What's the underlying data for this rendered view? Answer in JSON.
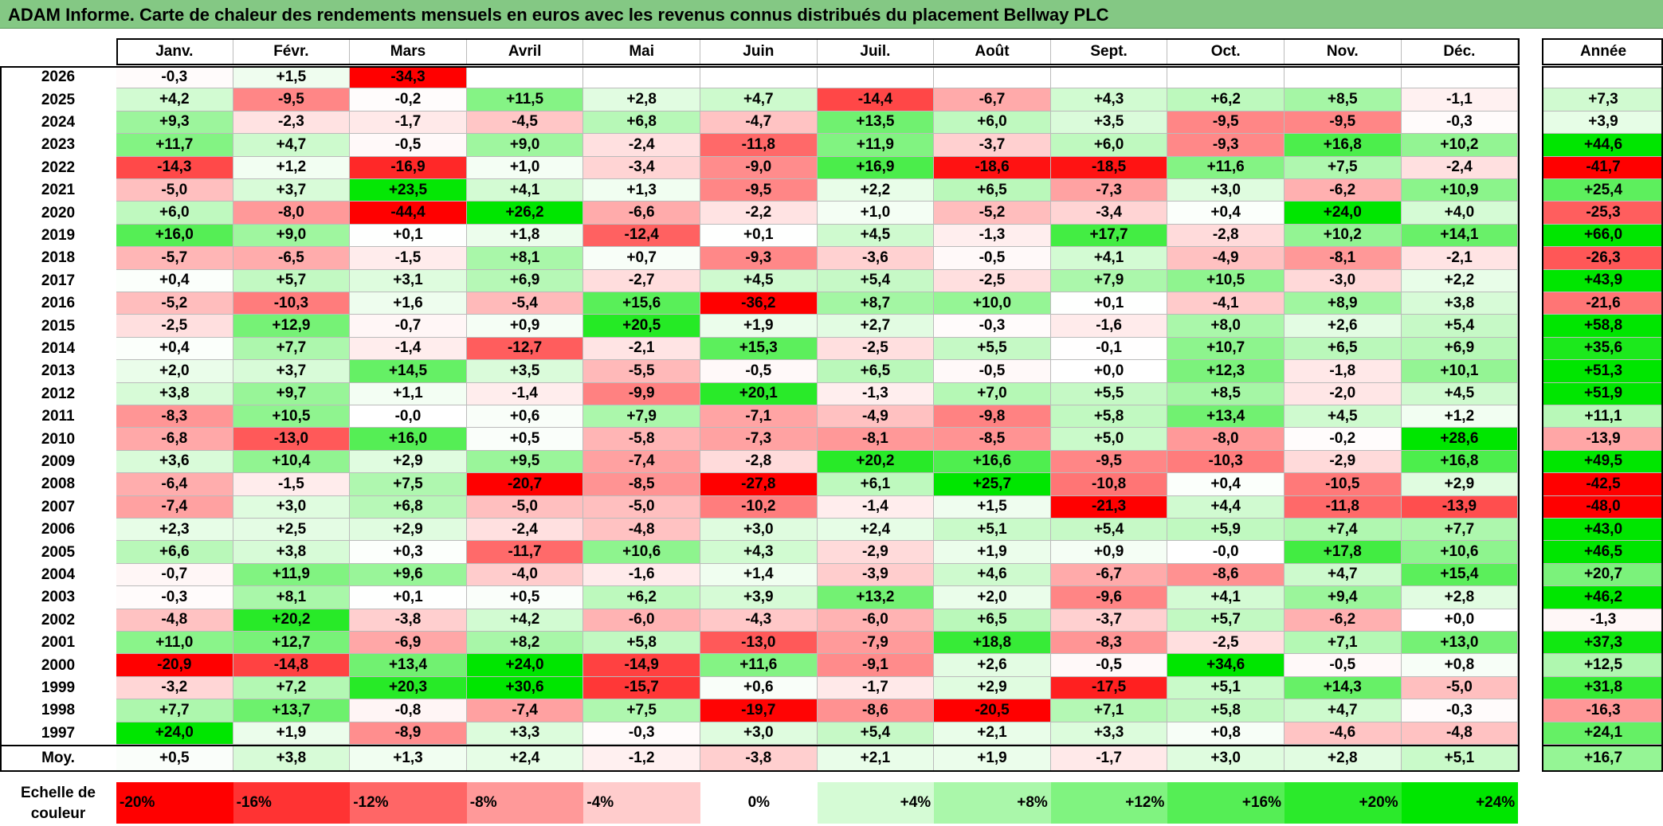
{
  "title": "ADAM Informe. Carte de chaleur des rendements mensuels en euros avec les revenus connus distribués du placement Bellway PLC",
  "chart_data": {
    "type": "heatmap",
    "months": [
      "Janv.",
      "Févr.",
      "Mars",
      "Avril",
      "Mai",
      "Juin",
      "Juil.",
      "Août",
      "Sept.",
      "Oct.",
      "Nov.",
      "Déc."
    ],
    "annual_header": "Année",
    "rows": [
      {
        "year": "2026",
        "values": [
          "-0,3",
          "+1,5",
          "-34,3",
          "",
          "",
          "",
          "",
          "",
          "",
          "",
          "",
          ""
        ],
        "annual": ""
      },
      {
        "year": "2025",
        "values": [
          "+4,2",
          "-9,5",
          "-0,2",
          "+11,5",
          "+2,8",
          "+4,7",
          "-14,4",
          "-6,7",
          "+4,3",
          "+6,2",
          "+8,5",
          "-1,1"
        ],
        "annual": "+7,3"
      },
      {
        "year": "2024",
        "values": [
          "+9,3",
          "-2,3",
          "-1,7",
          "-4,5",
          "+6,8",
          "-4,7",
          "+13,5",
          "+6,0",
          "+3,5",
          "-9,5",
          "-9,5",
          "-0,3"
        ],
        "annual": "+3,9"
      },
      {
        "year": "2023",
        "values": [
          "+11,7",
          "+4,7",
          "-0,5",
          "+9,0",
          "-2,4",
          "-11,8",
          "+11,9",
          "-3,7",
          "+6,0",
          "-9,3",
          "+16,8",
          "+10,2"
        ],
        "annual": "+44,6"
      },
      {
        "year": "2022",
        "values": [
          "-14,3",
          "+1,2",
          "-16,9",
          "+1,0",
          "-3,4",
          "-9,0",
          "+16,9",
          "-18,6",
          "-18,5",
          "+11,6",
          "+7,5",
          "-2,4"
        ],
        "annual": "-41,7"
      },
      {
        "year": "2021",
        "values": [
          "-5,0",
          "+3,7",
          "+23,5",
          "+4,1",
          "+1,3",
          "-9,5",
          "+2,2",
          "+6,5",
          "-7,3",
          "+3,0",
          "-6,2",
          "+10,9"
        ],
        "annual": "+25,4"
      },
      {
        "year": "2020",
        "values": [
          "+6,0",
          "-8,0",
          "-44,4",
          "+26,2",
          "-6,6",
          "-2,2",
          "+1,0",
          "-5,2",
          "-3,4",
          "+0,4",
          "+24,0",
          "+4,0"
        ],
        "annual": "-25,3"
      },
      {
        "year": "2019",
        "values": [
          "+16,0",
          "+9,0",
          "+0,1",
          "+1,8",
          "-12,4",
          "+0,1",
          "+4,5",
          "-1,3",
          "+17,7",
          "-2,8",
          "+10,2",
          "+14,1"
        ],
        "annual": "+66,0"
      },
      {
        "year": "2018",
        "values": [
          "-5,7",
          "-6,5",
          "-1,5",
          "+8,1",
          "+0,7",
          "-9,3",
          "-3,6",
          "-0,5",
          "+4,1",
          "-4,9",
          "-8,1",
          "-2,1"
        ],
        "annual": "-26,3"
      },
      {
        "year": "2017",
        "values": [
          "+0,4",
          "+5,7",
          "+3,1",
          "+6,9",
          "-2,7",
          "+4,5",
          "+5,4",
          "-2,5",
          "+7,9",
          "+10,5",
          "-3,0",
          "+2,2"
        ],
        "annual": "+43,9"
      },
      {
        "year": "2016",
        "values": [
          "-5,2",
          "-10,3",
          "+1,6",
          "-5,4",
          "+15,6",
          "-36,2",
          "+8,7",
          "+10,0",
          "+0,1",
          "-4,1",
          "+8,9",
          "+3,8"
        ],
        "annual": "-21,6"
      },
      {
        "year": "2015",
        "values": [
          "-2,5",
          "+12,9",
          "-0,7",
          "+0,9",
          "+20,5",
          "+1,9",
          "+2,7",
          "-0,3",
          "-1,6",
          "+8,0",
          "+2,6",
          "+5,4"
        ],
        "annual": "+58,8"
      },
      {
        "year": "2014",
        "values": [
          "+0,4",
          "+7,7",
          "-1,4",
          "-12,7",
          "-2,1",
          "+15,3",
          "-2,5",
          "+5,5",
          "-0,1",
          "+10,7",
          "+6,5",
          "+6,9"
        ],
        "annual": "+35,6"
      },
      {
        "year": "2013",
        "values": [
          "+2,0",
          "+3,7",
          "+14,5",
          "+3,5",
          "-5,5",
          "-0,5",
          "+6,5",
          "-0,5",
          "+0,0",
          "+12,3",
          "-1,8",
          "+10,1"
        ],
        "annual": "+51,3"
      },
      {
        "year": "2012",
        "values": [
          "+3,8",
          "+9,7",
          "+1,1",
          "-1,4",
          "-9,9",
          "+20,1",
          "-1,3",
          "+7,0",
          "+5,5",
          "+8,5",
          "-2,0",
          "+4,5"
        ],
        "annual": "+51,9"
      },
      {
        "year": "2011",
        "values": [
          "-8,3",
          "+10,5",
          "-0,0",
          "+0,6",
          "+7,9",
          "-7,1",
          "-4,9",
          "-9,8",
          "+5,8",
          "+13,4",
          "+4,5",
          "+1,2"
        ],
        "annual": "+11,1"
      },
      {
        "year": "2010",
        "values": [
          "-6,8",
          "-13,0",
          "+16,0",
          "+0,5",
          "-5,8",
          "-7,3",
          "-8,1",
          "-8,5",
          "+5,0",
          "-8,0",
          "-0,2",
          "+28,6"
        ],
        "annual": "-13,9"
      },
      {
        "year": "2009",
        "values": [
          "+3,6",
          "+10,4",
          "+2,9",
          "+9,5",
          "-7,4",
          "-2,8",
          "+20,2",
          "+16,6",
          "-9,5",
          "-10,3",
          "-2,9",
          "+16,8"
        ],
        "annual": "+49,5"
      },
      {
        "year": "2008",
        "values": [
          "-6,4",
          "-1,5",
          "+7,5",
          "-20,7",
          "-8,5",
          "-27,8",
          "+6,1",
          "+25,7",
          "-10,8",
          "+0,4",
          "-10,5",
          "+2,9"
        ],
        "annual": "-42,5"
      },
      {
        "year": "2007",
        "values": [
          "-7,4",
          "+3,0",
          "+6,8",
          "-5,0",
          "-5,0",
          "-10,2",
          "-1,4",
          "+1,5",
          "-21,3",
          "+4,4",
          "-11,8",
          "-13,9"
        ],
        "annual": "-48,0"
      },
      {
        "year": "2006",
        "values": [
          "+2,3",
          "+2,5",
          "+2,9",
          "-2,4",
          "-4,8",
          "+3,0",
          "+2,4",
          "+5,1",
          "+5,4",
          "+5,9",
          "+7,4",
          "+7,7"
        ],
        "annual": "+43,0"
      },
      {
        "year": "2005",
        "values": [
          "+6,6",
          "+3,8",
          "+0,3",
          "-11,7",
          "+10,6",
          "+4,3",
          "-2,9",
          "+1,9",
          "+0,9",
          "-0,0",
          "+17,8",
          "+10,6"
        ],
        "annual": "+46,5"
      },
      {
        "year": "2004",
        "values": [
          "-0,7",
          "+11,9",
          "+9,6",
          "-4,0",
          "-1,6",
          "+1,4",
          "-3,9",
          "+4,6",
          "-6,7",
          "-8,6",
          "+4,7",
          "+15,4"
        ],
        "annual": "+20,7"
      },
      {
        "year": "2003",
        "values": [
          "-0,3",
          "+8,1",
          "+0,1",
          "+0,5",
          "+6,2",
          "+3,9",
          "+13,2",
          "+2,0",
          "-9,6",
          "+4,1",
          "+9,4",
          "+2,8"
        ],
        "annual": "+46,2"
      },
      {
        "year": "2002",
        "values": [
          "-4,8",
          "+20,2",
          "-3,8",
          "+4,2",
          "-6,0",
          "-4,3",
          "-6,0",
          "+6,5",
          "-3,7",
          "+5,7",
          "-6,2",
          "+0,0"
        ],
        "annual": "-1,3"
      },
      {
        "year": "2001",
        "values": [
          "+11,0",
          "+12,7",
          "-6,9",
          "+8,2",
          "+5,8",
          "-13,0",
          "-7,9",
          "+18,8",
          "-8,3",
          "-2,5",
          "+7,1",
          "+13,0"
        ],
        "annual": "+37,3"
      },
      {
        "year": "2000",
        "values": [
          "-20,9",
          "-14,8",
          "+13,4",
          "+24,0",
          "-14,9",
          "+11,6",
          "-9,1",
          "+2,6",
          "-0,5",
          "+34,6",
          "-0,5",
          "+0,8"
        ],
        "annual": "+12,5"
      },
      {
        "year": "1999",
        "values": [
          "-3,2",
          "+7,2",
          "+20,3",
          "+30,6",
          "-15,7",
          "+0,6",
          "-1,7",
          "+2,9",
          "-17,5",
          "+5,1",
          "+14,3",
          "-5,0"
        ],
        "annual": "+31,8"
      },
      {
        "year": "1998",
        "values": [
          "+7,7",
          "+13,7",
          "-0,8",
          "-7,4",
          "+7,5",
          "-19,7",
          "-8,6",
          "-20,5",
          "+7,1",
          "+5,8",
          "+4,7",
          "-0,3"
        ],
        "annual": "-16,3"
      },
      {
        "year": "1997",
        "values": [
          "+24,0",
          "+1,9",
          "-8,9",
          "+3,3",
          "-0,3",
          "+3,0",
          "+5,4",
          "+2,1",
          "+3,3",
          "+0,8",
          "-4,6",
          "-4,8"
        ],
        "annual": "+24,1"
      }
    ],
    "average": {
      "label": "Moy.",
      "values": [
        "+0,5",
        "+3,8",
        "+1,3",
        "+2,4",
        "-1,2",
        "-3,8",
        "+2,1",
        "+1,9",
        "-1,7",
        "+3,0",
        "+2,8",
        "+5,1"
      ],
      "annual": "+16,7"
    },
    "scale_label": "Echelle de couleur",
    "scale": [
      "-20%",
      "-16%",
      "-12%",
      "-8%",
      "-4%",
      "0%",
      "+4%",
      "+8%",
      "+12%",
      "+16%",
      "+20%",
      "+24%"
    ],
    "colors": {
      "negative": "#ff0000",
      "neutral": "#ffffff",
      "positive": "#00e600"
    }
  }
}
